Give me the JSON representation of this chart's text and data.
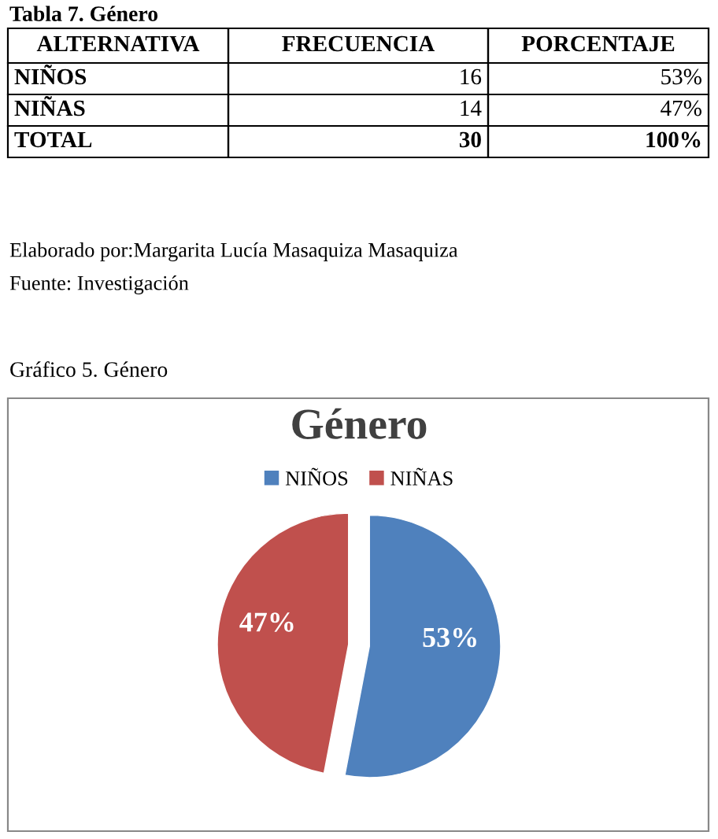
{
  "chart_data": {
    "type": "pie",
    "title": "Género",
    "categories": [
      "NIÑOS",
      "NIÑAS"
    ],
    "values": [
      53,
      47
    ],
    "colors": [
      "#4f81bd",
      "#c0504d"
    ],
    "value_labels": [
      "53%",
      "47%"
    ],
    "legend": "top",
    "annotations": [
      "Tabla 7. Género",
      "ALTERNATIVA",
      "FRECUENCIA",
      "PORCENTAJE",
      "NIÑOS",
      "16",
      "53%",
      "NIÑAS",
      "14",
      "47%",
      "TOTAL",
      "30",
      "100%",
      "Elaborado por:Margarita Lucía Masaquiza Masaquiza",
      "Fuente: Investigación",
      "Gráfico 5. Género"
    ]
  }
}
